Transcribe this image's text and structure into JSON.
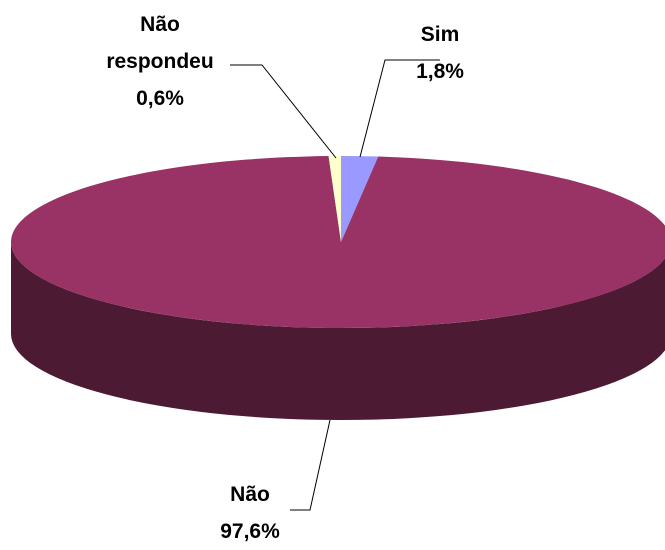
{
  "chart_data": {
    "type": "pie3d",
    "categories": [
      "Sim",
      "Não",
      "Não respondeu"
    ],
    "values": [
      1.8,
      97.6,
      0.6
    ],
    "value_labels": [
      "1,8%",
      "97,6%",
      "0,6%"
    ],
    "colors": [
      "#9999ff",
      "#993366",
      "#ffffcc"
    ]
  }
}
